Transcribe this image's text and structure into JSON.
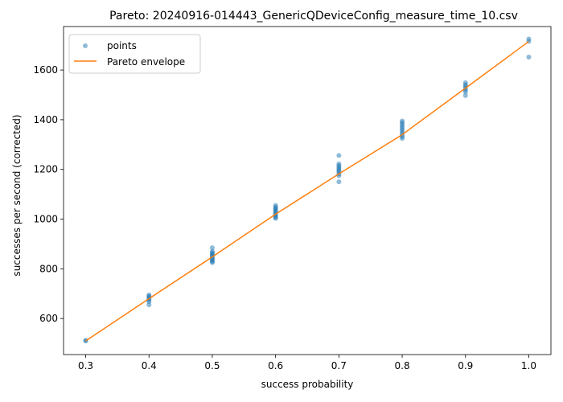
{
  "chart_data": {
    "type": "scatter",
    "title": "Pareto: 20240916-014443_GenericQDeviceConfig_measure_time_10.csv",
    "xlabel": "success probability",
    "ylabel": "successes per second (corrected)",
    "xlim": [
      0.265,
      1.035
    ],
    "ylim": [
      455,
      1775
    ],
    "xticks": [
      0.3,
      0.4,
      0.5,
      0.6,
      0.7,
      0.8,
      0.9,
      1.0
    ],
    "xtick_labels": [
      "0.3",
      "0.4",
      "0.5",
      "0.6",
      "0.7",
      "0.8",
      "0.9",
      "1.0"
    ],
    "yticks": [
      600,
      800,
      1000,
      1200,
      1400,
      1600
    ],
    "ytick_labels": [
      "600",
      "800",
      "1000",
      "1200",
      "1400",
      "1600"
    ],
    "grid": false,
    "legend_position": "top-left",
    "series": [
      {
        "name": "points",
        "kind": "scatter",
        "color": "#1f77b4",
        "points": [
          [
            0.3,
            510
          ],
          [
            0.3,
            512
          ],
          [
            0.4,
            655
          ],
          [
            0.4,
            668
          ],
          [
            0.4,
            675
          ],
          [
            0.4,
            680
          ],
          [
            0.4,
            685
          ],
          [
            0.4,
            690
          ],
          [
            0.4,
            695
          ],
          [
            0.5,
            825
          ],
          [
            0.5,
            830
          ],
          [
            0.5,
            835
          ],
          [
            0.5,
            840
          ],
          [
            0.5,
            845
          ],
          [
            0.5,
            850
          ],
          [
            0.5,
            855
          ],
          [
            0.5,
            860
          ],
          [
            0.5,
            865
          ],
          [
            0.5,
            870
          ],
          [
            0.5,
            885
          ],
          [
            0.6,
            1003
          ],
          [
            0.6,
            1008
          ],
          [
            0.6,
            1012
          ],
          [
            0.6,
            1018
          ],
          [
            0.6,
            1022
          ],
          [
            0.6,
            1028
          ],
          [
            0.6,
            1033
          ],
          [
            0.6,
            1038
          ],
          [
            0.6,
            1043
          ],
          [
            0.6,
            1048
          ],
          [
            0.6,
            1055
          ],
          [
            0.7,
            1150
          ],
          [
            0.7,
            1175
          ],
          [
            0.7,
            1182
          ],
          [
            0.7,
            1190
          ],
          [
            0.7,
            1196
          ],
          [
            0.7,
            1202
          ],
          [
            0.7,
            1208
          ],
          [
            0.7,
            1215
          ],
          [
            0.7,
            1222
          ],
          [
            0.7,
            1256
          ],
          [
            0.8,
            1325
          ],
          [
            0.8,
            1332
          ],
          [
            0.8,
            1340
          ],
          [
            0.8,
            1348
          ],
          [
            0.8,
            1356
          ],
          [
            0.8,
            1364
          ],
          [
            0.8,
            1372
          ],
          [
            0.8,
            1380
          ],
          [
            0.8,
            1388
          ],
          [
            0.8,
            1395
          ],
          [
            0.9,
            1497
          ],
          [
            0.9,
            1512
          ],
          [
            0.9,
            1520
          ],
          [
            0.9,
            1527
          ],
          [
            0.9,
            1534
          ],
          [
            0.9,
            1541
          ],
          [
            0.9,
            1549
          ],
          [
            1.0,
            1652
          ],
          [
            1.0,
            1715
          ],
          [
            1.0,
            1725
          ]
        ]
      },
      {
        "name": "Pareto envelope",
        "kind": "line",
        "color": "#ff7f0e",
        "x": [
          0.3,
          0.4,
          0.5,
          0.6,
          0.7,
          0.8,
          0.9,
          1.0
        ],
        "y": [
          510,
          680,
          848,
          1020,
          1182,
          1340,
          1527,
          1715
        ]
      }
    ]
  }
}
